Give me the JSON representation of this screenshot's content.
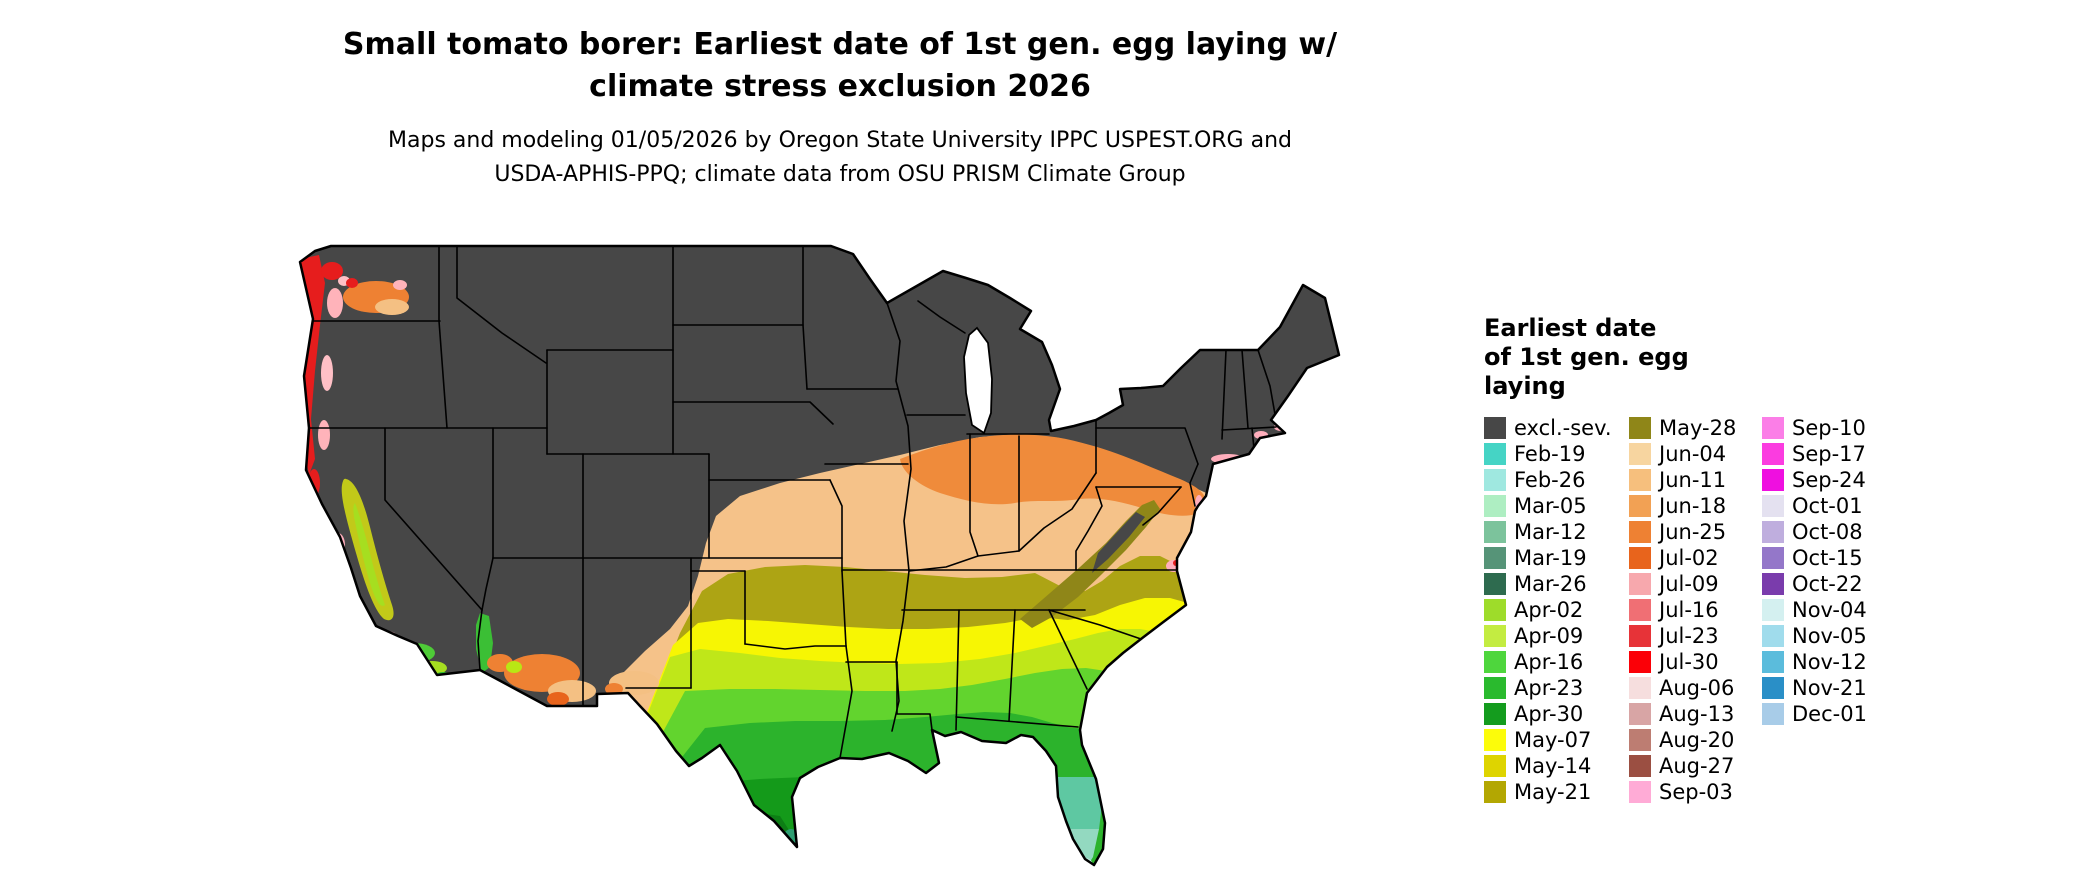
{
  "title": {
    "lines": [
      "Small tomato borer: Earliest date of 1st gen. egg laying w/",
      "climate stress exclusion 2026"
    ]
  },
  "subtitle": {
    "lines": [
      "Maps and modeling 01/05/2026 by Oregon State University IPPC USPEST.ORG and",
      "USDA-APHIS-PPQ; climate data from OSU PRISM Climate Group"
    ]
  },
  "legend": {
    "title_lines": [
      "Earliest date",
      "of 1st gen. egg",
      "laying"
    ],
    "columns": [
      [
        {
          "label": "excl.-sev.",
          "color": "#474747"
        },
        {
          "label": "Feb-19",
          "color": "#45d4c5"
        },
        {
          "label": "Feb-26",
          "color": "#9fe8e0"
        },
        {
          "label": "Mar-05",
          "color": "#aeeec2"
        },
        {
          "label": "Mar-12",
          "color": "#7cc39c"
        },
        {
          "label": "Mar-19",
          "color": "#569478"
        },
        {
          "label": "Mar-26",
          "color": "#2e6b4f"
        },
        {
          "label": "Apr-02",
          "color": "#9edc2a"
        },
        {
          "label": "Apr-09",
          "color": "#c3ec41"
        },
        {
          "label": "Apr-16",
          "color": "#4ed63d"
        },
        {
          "label": "Apr-23",
          "color": "#2aba2e"
        },
        {
          "label": "Apr-30",
          "color": "#149c1e"
        },
        {
          "label": "May-07",
          "color": "#fcfc0a"
        },
        {
          "label": "May-14",
          "color": "#ded400"
        },
        {
          "label": "May-21",
          "color": "#b3a702"
        }
      ],
      [
        {
          "label": "May-28",
          "color": "#8f8618"
        },
        {
          "label": "Jun-04",
          "color": "#f7d5a0"
        },
        {
          "label": "Jun-11",
          "color": "#f6bf7d"
        },
        {
          "label": "Jun-18",
          "color": "#f2a154"
        },
        {
          "label": "Jun-25",
          "color": "#ee8133"
        },
        {
          "label": "Jul-02",
          "color": "#e8641c"
        },
        {
          "label": "Jul-09",
          "color": "#f7a8ad"
        },
        {
          "label": "Jul-16",
          "color": "#f06f74"
        },
        {
          "label": "Jul-23",
          "color": "#e73338"
        },
        {
          "label": "Jul-30",
          "color": "#fb0007"
        },
        {
          "label": "Aug-06",
          "color": "#f6dede"
        },
        {
          "label": "Aug-13",
          "color": "#d8a5a5"
        },
        {
          "label": "Aug-20",
          "color": "#bd7d72"
        },
        {
          "label": "Aug-27",
          "color": "#9b4f42"
        },
        {
          "label": "Sep-03",
          "color": "#ffabd6"
        }
      ],
      [
        {
          "label": "Sep-10",
          "color": "#fb7ee7"
        },
        {
          "label": "Sep-17",
          "color": "#fb3ce0"
        },
        {
          "label": "Sep-24",
          "color": "#ef0fe0"
        },
        {
          "label": "Oct-01",
          "color": "#e4e1f0"
        },
        {
          "label": "Oct-08",
          "color": "#bfaede"
        },
        {
          "label": "Oct-15",
          "color": "#9477c9"
        },
        {
          "label": "Oct-22",
          "color": "#7a3cac"
        },
        {
          "label": "Nov-04",
          "color": "#d4f0f0"
        },
        {
          "label": "Nov-05",
          "color": "#a0dcec"
        },
        {
          "label": "Nov-12",
          "color": "#5bbcdc"
        },
        {
          "label": "Nov-21",
          "color": "#2a8fc7"
        },
        {
          "label": "Dec-01",
          "color": "#a8cce8"
        }
      ]
    ]
  }
}
